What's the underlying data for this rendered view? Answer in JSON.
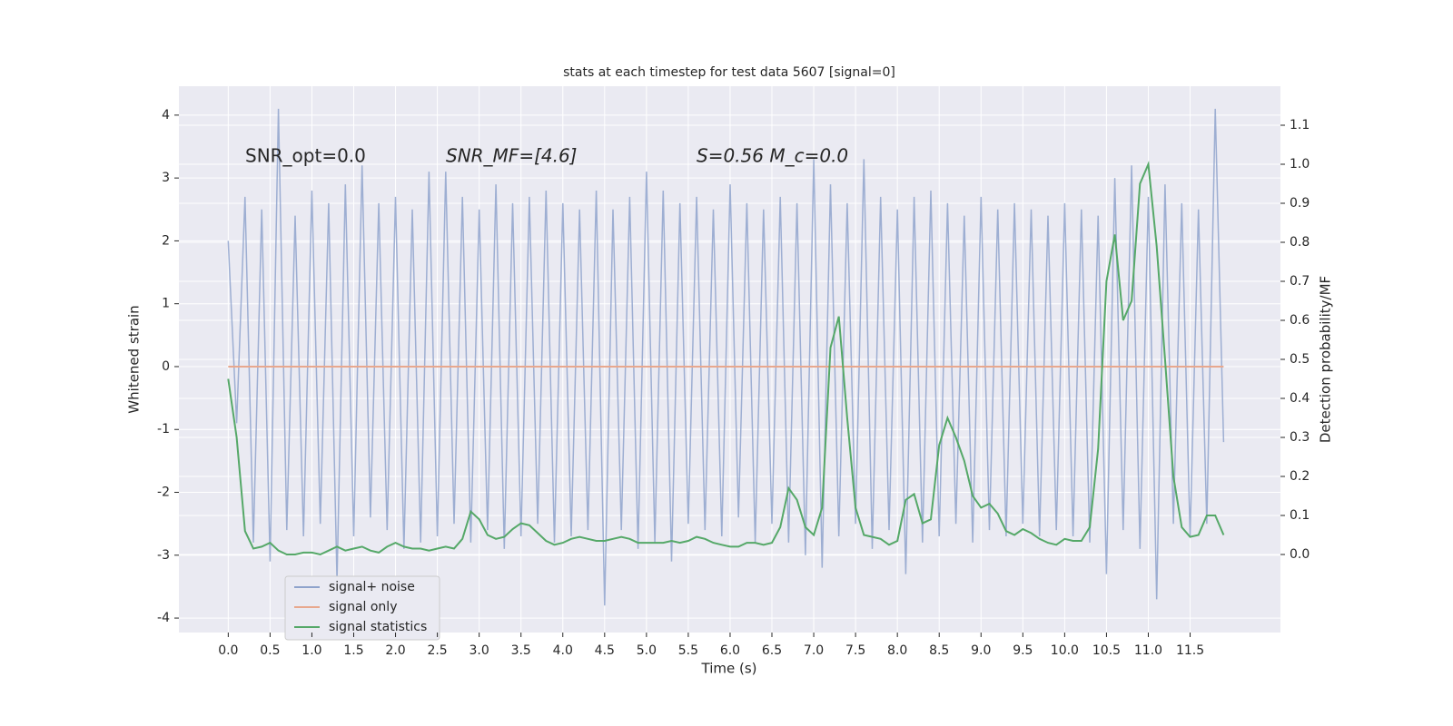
{
  "chart_data": {
    "type": "line",
    "title": "stats at each timestep for test data 5607 [signal=0]",
    "xlabel": "Time (s)",
    "ylabel": "Whitened strain",
    "y2label": "Detection probability/MF",
    "annotations": [
      "SNR_opt=0.0",
      "SNR_MF=[4.6]",
      "S=0.56   M_c=0.0"
    ],
    "x": [
      0.0,
      0.1,
      0.2,
      0.3,
      0.4,
      0.5,
      0.6,
      0.7,
      0.8,
      0.9,
      1.0,
      1.1,
      1.2,
      1.3,
      1.4,
      1.5,
      1.6,
      1.7,
      1.8,
      1.9,
      2.0,
      2.1,
      2.2,
      2.3,
      2.4,
      2.5,
      2.6,
      2.7,
      2.8,
      2.9,
      3.0,
      3.1,
      3.2,
      3.3,
      3.4,
      3.5,
      3.6,
      3.7,
      3.8,
      3.9,
      4.0,
      4.1,
      4.2,
      4.3,
      4.4,
      4.5,
      4.6,
      4.7,
      4.8,
      4.9,
      5.0,
      5.1,
      5.2,
      5.3,
      5.4,
      5.5,
      5.6,
      5.7,
      5.8,
      5.9,
      6.0,
      6.1,
      6.2,
      6.3,
      6.4,
      6.5,
      6.6,
      6.7,
      6.8,
      6.9,
      7.0,
      7.1,
      7.2,
      7.3,
      7.4,
      7.5,
      7.6,
      7.7,
      7.8,
      7.9,
      8.0,
      8.1,
      8.2,
      8.3,
      8.4,
      8.5,
      8.6,
      8.7,
      8.8,
      8.9,
      9.0,
      9.1,
      9.2,
      9.3,
      9.4,
      9.5,
      9.6,
      9.7,
      9.8,
      9.9,
      10.0,
      10.1,
      10.2,
      10.3,
      10.4,
      10.5,
      10.6,
      10.7,
      10.8,
      10.9,
      11.0,
      11.1,
      11.2,
      11.3,
      11.4,
      11.5,
      11.6,
      11.7,
      11.8,
      11.9
    ],
    "series": [
      {
        "name": "signal+ noise",
        "color": "#8fa3cc",
        "values": [
          2.0,
          -0.9,
          2.7,
          -2.8,
          2.5,
          -3.1,
          4.1,
          -2.6,
          2.4,
          -2.7,
          2.8,
          -2.5,
          2.6,
          -3.4,
          2.9,
          -2.7,
          3.2,
          -2.4,
          2.6,
          -2.6,
          2.7,
          -2.9,
          2.5,
          -2.8,
          3.1,
          -2.7,
          3.1,
          -2.5,
          2.7,
          -2.8,
          2.5,
          -2.6,
          2.9,
          -2.9,
          2.6,
          -2.7,
          2.7,
          -2.5,
          2.8,
          -2.8,
          2.6,
          -2.7,
          2.5,
          -2.6,
          2.8,
          -3.8,
          2.5,
          -2.6,
          2.7,
          -2.9,
          3.1,
          -2.8,
          2.8,
          -3.1,
          2.6,
          -2.5,
          2.7,
          -2.6,
          2.5,
          -2.7,
          2.9,
          -2.4,
          2.6,
          -2.8,
          2.5,
          -2.5,
          2.7,
          -2.8,
          2.6,
          -3.0,
          3.3,
          -3.2,
          2.9,
          -2.7,
          2.6,
          -2.5,
          3.3,
          -2.9,
          2.7,
          -2.6,
          2.5,
          -3.3,
          2.7,
          -2.8,
          2.8,
          -2.7,
          2.6,
          -2.5,
          2.4,
          -2.8,
          2.7,
          -2.6,
          2.5,
          -2.7,
          2.6,
          -2.5,
          2.5,
          -2.7,
          2.4,
          -2.6,
          2.6,
          -2.7,
          2.5,
          -2.8,
          2.4,
          -3.3,
          3.0,
          -2.6,
          3.2,
          -2.9,
          2.7,
          -3.7,
          2.9,
          -2.5,
          2.6,
          -2.7,
          2.5,
          -2.5,
          4.1,
          -1.2
        ]
      },
      {
        "name": "signal only",
        "color": "#e8a88e",
        "values": [
          0,
          0,
          0,
          0,
          0,
          0,
          0,
          0,
          0,
          0,
          0,
          0,
          0,
          0,
          0,
          0,
          0,
          0,
          0,
          0,
          0,
          0,
          0,
          0,
          0,
          0,
          0,
          0,
          0,
          0,
          0,
          0,
          0,
          0,
          0,
          0,
          0,
          0,
          0,
          0,
          0,
          0,
          0,
          0,
          0,
          0,
          0,
          0,
          0,
          0,
          0,
          0,
          0,
          0,
          0,
          0,
          0,
          0,
          0,
          0,
          0,
          0,
          0,
          0,
          0,
          0,
          0,
          0,
          0,
          0,
          0,
          0,
          0,
          0,
          0,
          0,
          0,
          0,
          0,
          0,
          0,
          0,
          0,
          0,
          0,
          0,
          0,
          0,
          0,
          0,
          0,
          0,
          0,
          0,
          0,
          0,
          0,
          0,
          0,
          0,
          0,
          0,
          0,
          0,
          0,
          0,
          0,
          0,
          0,
          0,
          0,
          0,
          0,
          0,
          0,
          0,
          0,
          0,
          0,
          0
        ]
      },
      {
        "name": "signal statistics",
        "color": "#55a868",
        "axis": "y2",
        "values": [
          0.45,
          0.3,
          0.06,
          0.015,
          0.02,
          0.03,
          0.01,
          0.0,
          0.0,
          0.005,
          0.005,
          0.0,
          0.01,
          0.02,
          0.01,
          0.015,
          0.02,
          0.01,
          0.005,
          0.02,
          0.03,
          0.02,
          0.015,
          0.015,
          0.01,
          0.015,
          0.02,
          0.015,
          0.04,
          0.11,
          0.09,
          0.05,
          0.04,
          0.045,
          0.065,
          0.08,
          0.075,
          0.055,
          0.035,
          0.025,
          0.03,
          0.04,
          0.045,
          0.04,
          0.035,
          0.035,
          0.04,
          0.045,
          0.04,
          0.03,
          0.03,
          0.03,
          0.03,
          0.035,
          0.03,
          0.035,
          0.045,
          0.04,
          0.03,
          0.025,
          0.02,
          0.02,
          0.03,
          0.03,
          0.025,
          0.03,
          0.07,
          0.17,
          0.14,
          0.07,
          0.05,
          0.12,
          0.53,
          0.61,
          0.35,
          0.12,
          0.05,
          0.045,
          0.04,
          0.025,
          0.035,
          0.14,
          0.155,
          0.08,
          0.09,
          0.28,
          0.35,
          0.3,
          0.24,
          0.15,
          0.12,
          0.13,
          0.105,
          0.06,
          0.05,
          0.065,
          0.055,
          0.04,
          0.03,
          0.025,
          0.04,
          0.035,
          0.035,
          0.07,
          0.27,
          0.7,
          0.82,
          0.6,
          0.65,
          0.95,
          1.0,
          0.79,
          0.5,
          0.2,
          0.07,
          0.045,
          0.05,
          0.1,
          0.1,
          0.05
        ]
      }
    ],
    "xlim": [
      -0.59,
      12.58
    ],
    "xticks": [
      {
        "value": 0,
        "label": "0.0"
      },
      0.5,
      {
        "value": 1,
        "label": "1.0"
      },
      1.5,
      {
        "value": 2,
        "label": "2.0"
      },
      2.5,
      {
        "value": 3,
        "label": "3.0"
      },
      3.5,
      {
        "value": 4,
        "label": "4.0"
      },
      4.5,
      {
        "value": 5,
        "label": "5.0"
      },
      5.5,
      {
        "value": 6,
        "label": "6.0"
      },
      6.5,
      {
        "value": 7,
        "label": "7.0"
      },
      7.5,
      {
        "value": 8,
        "label": "8.0"
      },
      8.5,
      {
        "value": 9,
        "label": "9.0"
      },
      9.5,
      {
        "value": 10,
        "label": "10.0"
      },
      10.5,
      {
        "value": 11,
        "label": "11.0"
      },
      11.5
    ],
    "ylim": [
      -4.23,
      4.46
    ],
    "yticks": [
      -4,
      -3,
      -2,
      -1,
      0,
      1,
      2,
      3,
      4
    ],
    "y2lim": [
      -0.2,
      1.2
    ],
    "y2ticks": [
      {
        "value": 0,
        "label": "0.0"
      },
      0.1,
      0.2,
      0.3,
      0.4,
      0.5,
      0.6,
      0.7,
      0.8,
      0.9,
      {
        "value": 1,
        "label": "1.0"
      },
      1.1
    ],
    "grid": true,
    "legend": "lower left"
  }
}
